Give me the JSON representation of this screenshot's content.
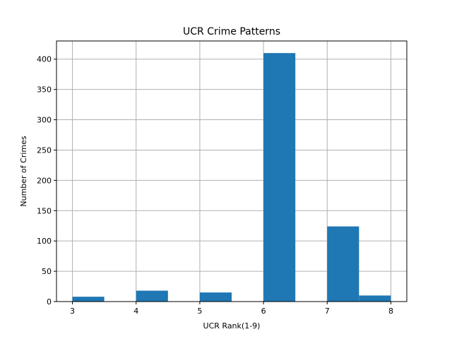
{
  "chart_data": {
    "type": "bar",
    "title": "UCR Crime Patterns",
    "xlabel": "UCR Rank(1-9)",
    "ylabel": "Number of Crimes",
    "bins": [
      {
        "x0": 3.0,
        "x1": 3.5,
        "count": 8
      },
      {
        "x0": 3.5,
        "x1": 4.0,
        "count": 0
      },
      {
        "x0": 4.0,
        "x1": 4.5,
        "count": 18
      },
      {
        "x0": 4.5,
        "x1": 5.0,
        "count": 0
      },
      {
        "x0": 5.0,
        "x1": 5.5,
        "count": 15
      },
      {
        "x0": 5.5,
        "x1": 6.0,
        "count": 0
      },
      {
        "x0": 6.0,
        "x1": 6.5,
        "count": 410
      },
      {
        "x0": 6.5,
        "x1": 7.0,
        "count": 0
      },
      {
        "x0": 7.0,
        "x1": 7.5,
        "count": 124
      },
      {
        "x0": 7.5,
        "x1": 8.0,
        "count": 10
      }
    ],
    "xlim": [
      2.75,
      8.25
    ],
    "ylim": [
      0,
      430
    ],
    "xticks": [
      3,
      4,
      5,
      6,
      7,
      8
    ],
    "yticks": [
      0,
      50,
      100,
      150,
      200,
      250,
      300,
      350,
      400
    ],
    "grid": true,
    "bar_color": "#1f77b4",
    "grid_color": "#b0b0b0"
  }
}
